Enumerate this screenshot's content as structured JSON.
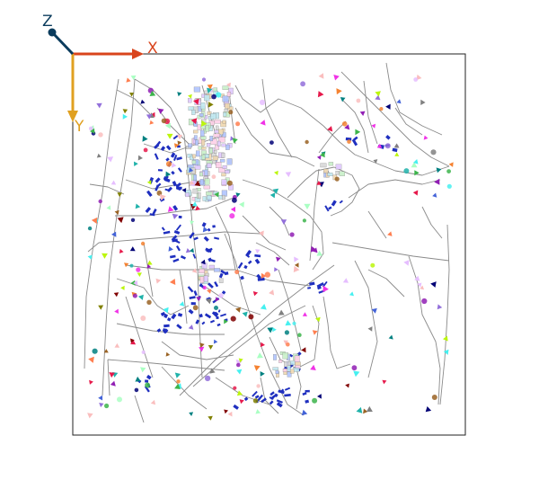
{
  "axes": {
    "x_label": "X",
    "y_label": "Y",
    "z_label": "Z",
    "x_color": "#d9441c",
    "y_color": "#e0a020",
    "z_color": "#0b3c5d"
  },
  "map": {
    "road_color": "#8a8a8a",
    "frame_color": "#222222",
    "building_color": "#1f2fbf",
    "marker_palette": [
      "#e6194b",
      "#3cb44b",
      "#4363d8",
      "#f58231",
      "#911eb4",
      "#46f0f0",
      "#f032e6",
      "#bcf60c",
      "#fabebe",
      "#008080",
      "#e6beff",
      "#9a6324",
      "#800000",
      "#aaffc3",
      "#808000",
      "#000075",
      "#808080",
      "#ff7f50",
      "#20b2aa",
      "#9370db"
    ],
    "cluster_colors": [
      "#b0c4ff",
      "#c8f0c8",
      "#e0c8ff",
      "#f0d8b0",
      "#c0e8f0",
      "#d8d8d8",
      "#ffd0e8"
    ]
  }
}
